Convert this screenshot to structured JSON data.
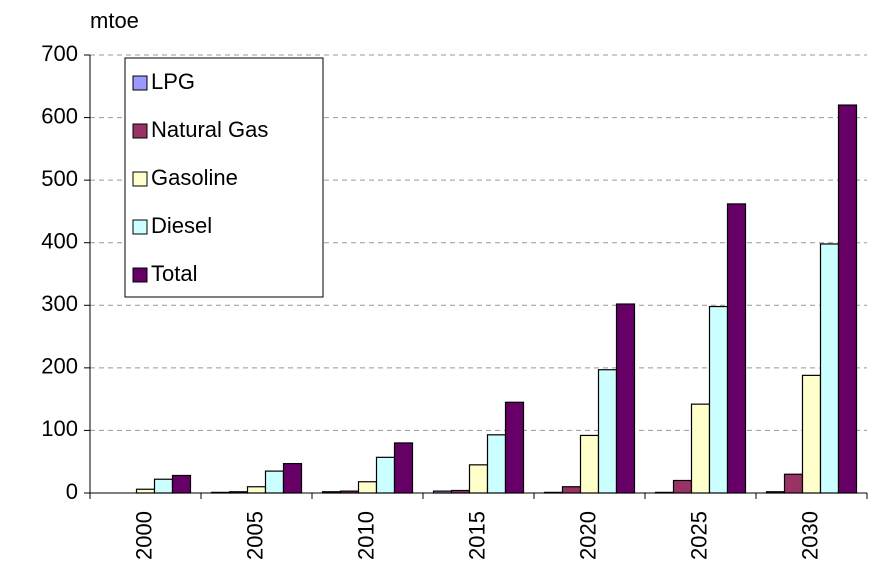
{
  "chart_data": {
    "type": "bar",
    "y_label": "mtoe",
    "categories": [
      "2000",
      "2005",
      "2010",
      "2015",
      "2020",
      "2025",
      "2030"
    ],
    "series": [
      {
        "name": "LPG",
        "color": "#9999ff",
        "values": [
          0,
          1,
          2,
          3,
          1,
          1,
          2
        ]
      },
      {
        "name": "Natural Gas",
        "color": "#993366",
        "values": [
          0,
          2,
          3,
          4,
          10,
          20,
          30
        ]
      },
      {
        "name": "Gasoline",
        "color": "#ffffcc",
        "values": [
          6,
          10,
          18,
          45,
          92,
          142,
          188
        ]
      },
      {
        "name": "Diesel",
        "color": "#ccffff",
        "values": [
          22,
          35,
          57,
          93,
          197,
          298,
          398
        ]
      },
      {
        "name": "Total",
        "color": "#660066",
        "values": [
          28,
          47,
          80,
          145,
          302,
          462,
          620
        ]
      }
    ],
    "ylim": [
      0,
      700
    ],
    "yticks": [
      0,
      100,
      200,
      300,
      400,
      500,
      600,
      700
    ],
    "grid": true,
    "legend": "upper left"
  }
}
